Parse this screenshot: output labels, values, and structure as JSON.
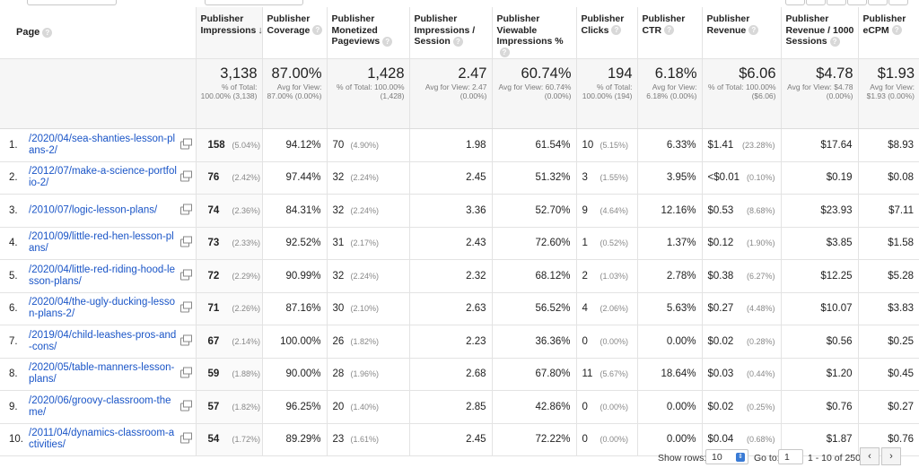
{
  "columns": {
    "page": "Page",
    "impressions": "Publisher Impressions",
    "coverage": "Publisher Coverage",
    "monetized": "Publisher Monetized Pageviews",
    "impr_session": "Publisher Impressions / Session",
    "viewable": "Publisher Viewable Impressions %",
    "clicks": "Publisher Clicks",
    "ctr": "Publisher CTR",
    "revenue": "Publisher Revenue",
    "rev_1000": "Publisher Revenue / 1000 Sessions",
    "ecpm": "Publisher eCPM"
  },
  "totals": {
    "impressions": {
      "value": "3,138",
      "sub": "% of Total: 100.00% (3,138)"
    },
    "coverage": {
      "value": "87.00%",
      "sub": "Avg for View: 87.00% (0.00%)"
    },
    "monetized": {
      "value": "1,428",
      "sub": "% of Total: 100.00% (1,428)"
    },
    "impr_session": {
      "value": "2.47",
      "sub": "Avg for View: 2.47 (0.00%)"
    },
    "viewable": {
      "value": "60.74%",
      "sub": "Avg for View: 60.74% (0.00%)"
    },
    "clicks": {
      "value": "194",
      "sub": "% of Total: 100.00% (194)"
    },
    "ctr": {
      "value": "6.18%",
      "sub": "Avg for View: 6.18% (0.00%)"
    },
    "revenue": {
      "value": "$6.06",
      "sub": "% of Total: 100.00% ($6.06)"
    },
    "rev_1000": {
      "value": "$4.78",
      "sub": "Avg for View: $4.78 (0.00%)"
    },
    "ecpm": {
      "value": "$1.93",
      "sub": "Avg for View: $1.93 (0.00%)"
    }
  },
  "rows": [
    {
      "n": "1.",
      "page": "/2020/04/sea-shanties-lesson-plans-2/",
      "impr": "158",
      "impr_pct": "(5.04%)",
      "coverage": "94.12%",
      "mon": "70",
      "mon_pct": "(4.90%)",
      "ips": "1.98",
      "view": "61.54%",
      "clicks": "10",
      "clicks_pct": "(5.15%)",
      "ctr": "6.33%",
      "rev": "$1.41",
      "rev_pct": "(23.28%)",
      "r1000": "$17.64",
      "ecpm": "$8.93"
    },
    {
      "n": "2.",
      "page": "/2012/07/make-a-science-portfolio-2/",
      "impr": "76",
      "impr_pct": "(2.42%)",
      "coverage": "97.44%",
      "mon": "32",
      "mon_pct": "(2.24%)",
      "ips": "2.45",
      "view": "51.32%",
      "clicks": "3",
      "clicks_pct": "(1.55%)",
      "ctr": "3.95%",
      "rev": "<$0.01",
      "rev_pct": "(0.10%)",
      "r1000": "$0.19",
      "ecpm": "$0.08"
    },
    {
      "n": "3.",
      "page": "/2010/07/logic-lesson-plans/",
      "impr": "74",
      "impr_pct": "(2.36%)",
      "coverage": "84.31%",
      "mon": "32",
      "mon_pct": "(2.24%)",
      "ips": "3.36",
      "view": "52.70%",
      "clicks": "9",
      "clicks_pct": "(4.64%)",
      "ctr": "12.16%",
      "rev": "$0.53",
      "rev_pct": "(8.68%)",
      "r1000": "$23.93",
      "ecpm": "$7.11"
    },
    {
      "n": "4.",
      "page": "/2010/09/little-red-hen-lesson-plans/",
      "impr": "73",
      "impr_pct": "(2.33%)",
      "coverage": "92.52%",
      "mon": "31",
      "mon_pct": "(2.17%)",
      "ips": "2.43",
      "view": "72.60%",
      "clicks": "1",
      "clicks_pct": "(0.52%)",
      "ctr": "1.37%",
      "rev": "$0.12",
      "rev_pct": "(1.90%)",
      "r1000": "$3.85",
      "ecpm": "$1.58"
    },
    {
      "n": "5.",
      "page": "/2020/04/little-red-riding-hood-lesson-plans/",
      "impr": "72",
      "impr_pct": "(2.29%)",
      "coverage": "90.99%",
      "mon": "32",
      "mon_pct": "(2.24%)",
      "ips": "2.32",
      "view": "68.12%",
      "clicks": "2",
      "clicks_pct": "(1.03%)",
      "ctr": "2.78%",
      "rev": "$0.38",
      "rev_pct": "(6.27%)",
      "r1000": "$12.25",
      "ecpm": "$5.28"
    },
    {
      "n": "6.",
      "page": "/2020/04/the-ugly-ducking-lesson-plans-2/",
      "impr": "71",
      "impr_pct": "(2.26%)",
      "coverage": "87.16%",
      "mon": "30",
      "mon_pct": "(2.10%)",
      "ips": "2.63",
      "view": "56.52%",
      "clicks": "4",
      "clicks_pct": "(2.06%)",
      "ctr": "5.63%",
      "rev": "$0.27",
      "rev_pct": "(4.48%)",
      "r1000": "$10.07",
      "ecpm": "$3.83"
    },
    {
      "n": "7.",
      "page": "/2019/04/child-leashes-pros-and-cons/",
      "impr": "67",
      "impr_pct": "(2.14%)",
      "coverage": "100.00%",
      "mon": "26",
      "mon_pct": "(1.82%)",
      "ips": "2.23",
      "view": "36.36%",
      "clicks": "0",
      "clicks_pct": "(0.00%)",
      "ctr": "0.00%",
      "rev": "$0.02",
      "rev_pct": "(0.28%)",
      "r1000": "$0.56",
      "ecpm": "$0.25"
    },
    {
      "n": "8.",
      "page": "/2020/05/table-manners-lesson-plans/",
      "impr": "59",
      "impr_pct": "(1.88%)",
      "coverage": "90.00%",
      "mon": "28",
      "mon_pct": "(1.96%)",
      "ips": "2.68",
      "view": "67.80%",
      "clicks": "11",
      "clicks_pct": "(5.67%)",
      "ctr": "18.64%",
      "rev": "$0.03",
      "rev_pct": "(0.44%)",
      "r1000": "$1.20",
      "ecpm": "$0.45"
    },
    {
      "n": "9.",
      "page": "/2020/06/groovy-classroom-theme/",
      "impr": "57",
      "impr_pct": "(1.82%)",
      "coverage": "96.25%",
      "mon": "20",
      "mon_pct": "(1.40%)",
      "ips": "2.85",
      "view": "42.86%",
      "clicks": "0",
      "clicks_pct": "(0.00%)",
      "ctr": "0.00%",
      "rev": "$0.02",
      "rev_pct": "(0.25%)",
      "r1000": "$0.76",
      "ecpm": "$0.27"
    },
    {
      "n": "10.",
      "page": "/2011/04/dynamics-classroom-activities/",
      "impr": "54",
      "impr_pct": "(1.72%)",
      "coverage": "89.29%",
      "mon": "23",
      "mon_pct": "(1.61%)",
      "ips": "2.45",
      "view": "72.22%",
      "clicks": "0",
      "clicks_pct": "(0.00%)",
      "ctr": "0.00%",
      "rev": "$0.04",
      "rev_pct": "(0.68%)",
      "r1000": "$1.87",
      "ecpm": "$0.76"
    }
  ],
  "footer": {
    "show_rows_label": "Show rows:",
    "show_rows_value": "10",
    "goto_label": "Go to:",
    "goto_value": "1",
    "range": "1 - 10 of 250",
    "prev": "‹",
    "next": "›"
  },
  "icons": {
    "help": "help-icon",
    "sort": "sort-down-arrow-icon",
    "popout": "open-in-new-window-icon"
  },
  "colors": {
    "link": "#1a55c7",
    "totals_bg": "#f6f6f6",
    "accent": "#3a7bd5"
  }
}
